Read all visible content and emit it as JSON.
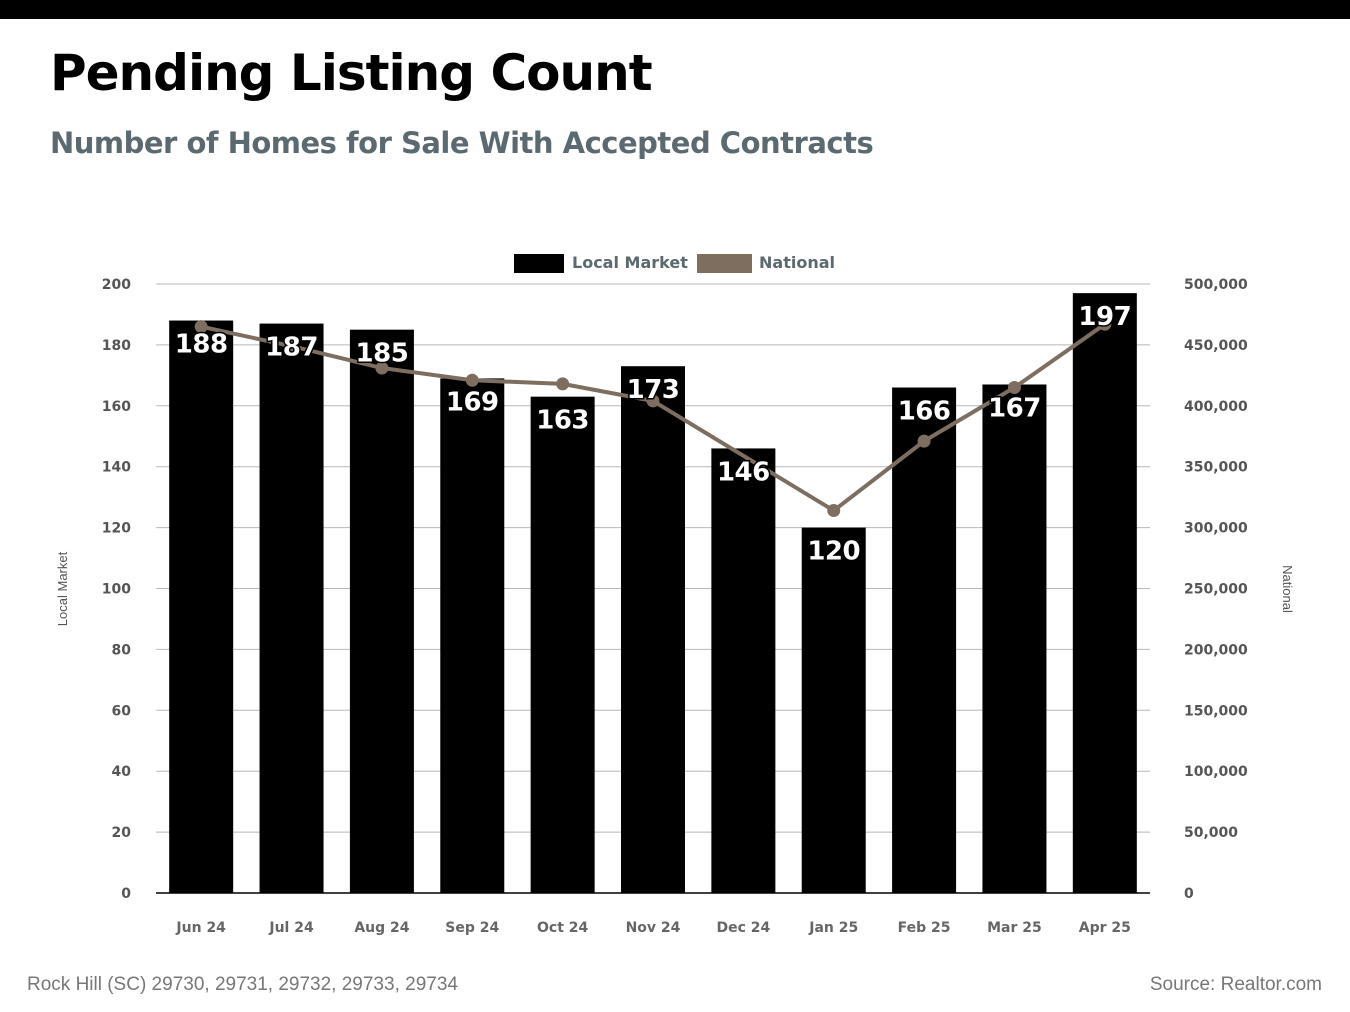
{
  "header": {
    "title": "Pending Listing Count",
    "subtitle": "Number of Homes for Sale With Accepted Contracts"
  },
  "footer": {
    "location": "Rock Hill (SC) 29730, 29731, 29732, 29733, 29734",
    "source": "Source: Realtor.com"
  },
  "colors": {
    "bar": "#000000",
    "line": "#7d6e60",
    "title": "#000000",
    "subtitle": "#5a6a70",
    "axis_text": "#555555"
  },
  "chart_data": {
    "type": "bar",
    "categories": [
      "Jun 24",
      "Jul 24",
      "Aug 24",
      "Sep 24",
      "Oct 24",
      "Nov 24",
      "Dec 24",
      "Jan 25",
      "Feb 25",
      "Mar 25",
      "Apr 25"
    ],
    "series": [
      {
        "name": "Local Market",
        "type": "bar",
        "axis": "left",
        "values": [
          188,
          187,
          185,
          169,
          163,
          173,
          146,
          120,
          166,
          167,
          197
        ],
        "data_labels": [
          "188",
          "187",
          "185",
          "169",
          "163",
          "173",
          "146",
          "120",
          "166",
          "167",
          "197"
        ]
      },
      {
        "name": "National",
        "type": "line",
        "axis": "right",
        "values": [
          465000,
          449000,
          431000,
          421000,
          418000,
          404000,
          null,
          314000,
          371000,
          415000,
          467000
        ]
      }
    ],
    "ylabel": "Local Market",
    "y2label": "National",
    "ylim": [
      0,
      200
    ],
    "y2lim": [
      0,
      500000
    ],
    "yticks": [
      "0",
      "20",
      "40",
      "60",
      "80",
      "100",
      "120",
      "140",
      "160",
      "180",
      "200"
    ],
    "y2ticks": [
      "0",
      "50,000",
      "100,000",
      "150,000",
      "200,000",
      "250,000",
      "300,000",
      "350,000",
      "400,000",
      "450,000",
      "500,000"
    ],
    "grid": true,
    "legend": "top-center"
  }
}
